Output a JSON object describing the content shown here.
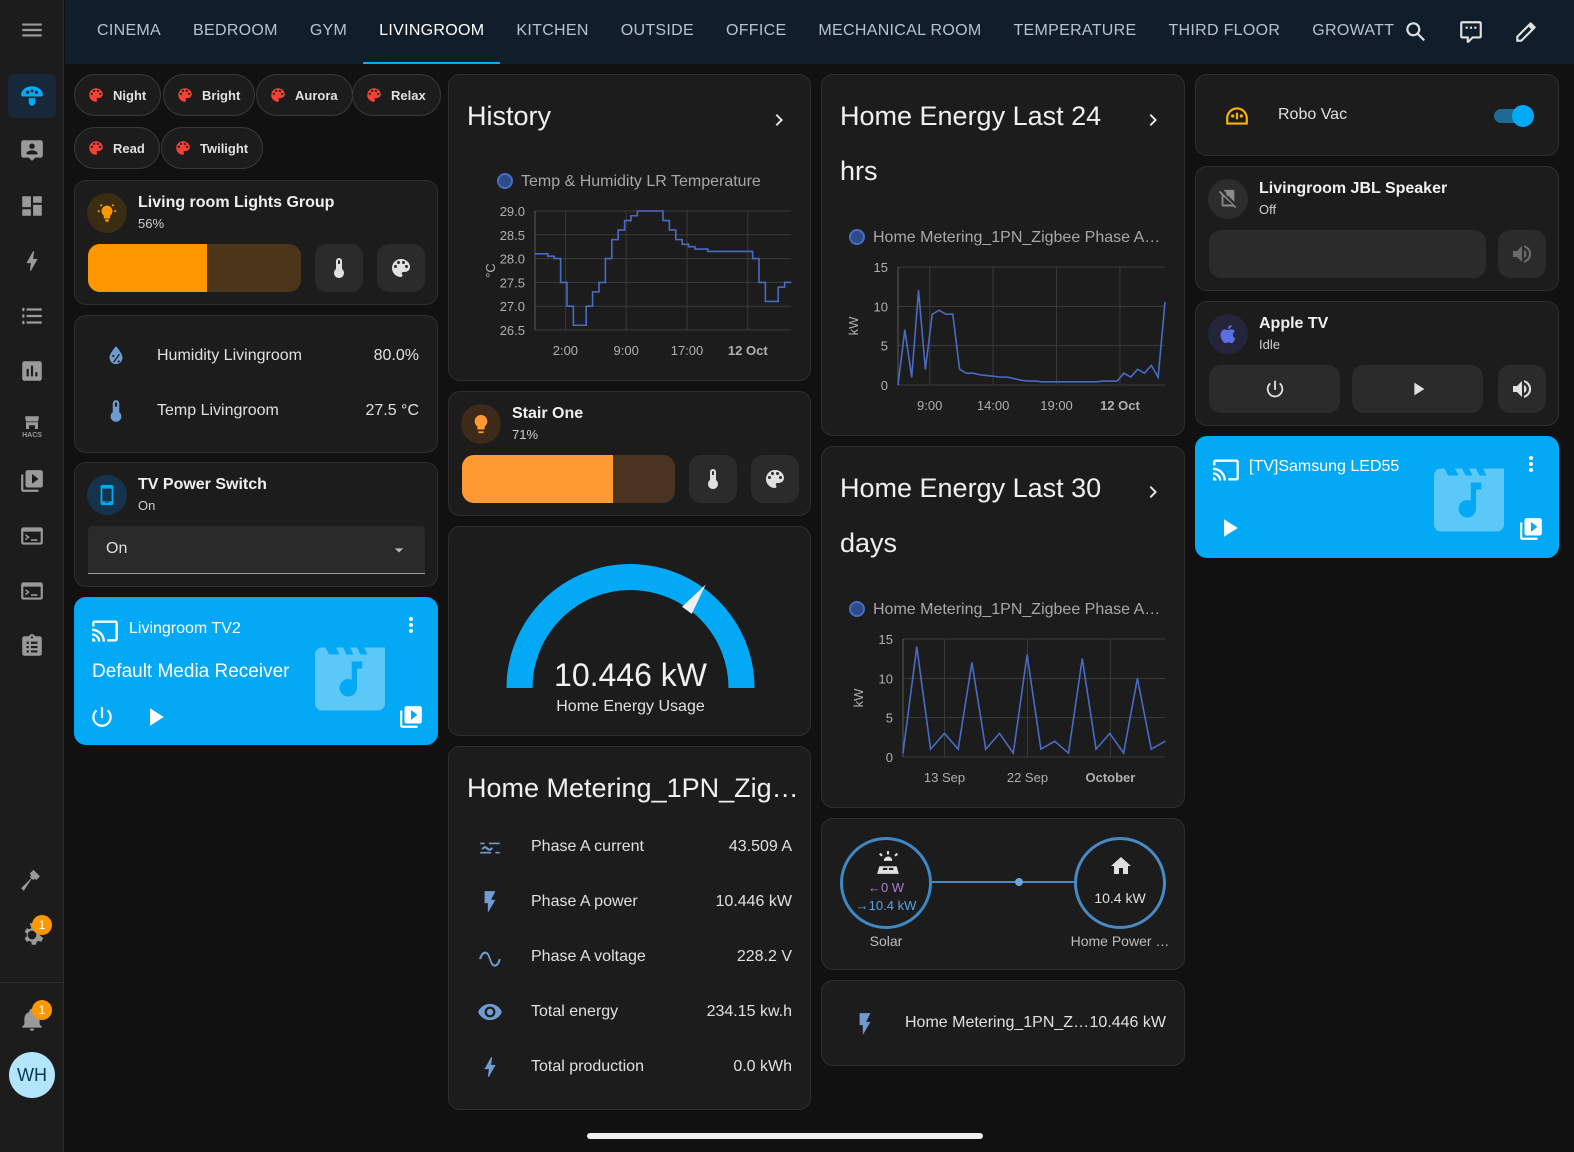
{
  "nav": {
    "tabs": [
      "CINEMA",
      "BEDROOM",
      "GYM",
      "LIVINGROOM",
      "KITCHEN",
      "OUTSIDE",
      "OFFICE",
      "MECHANICAL ROOM",
      "TEMPERATURE",
      "THIRD FLOOR",
      "GROWATT"
    ],
    "active_tab": "LIVINGROOM"
  },
  "sidebar": {
    "hacs_label": "HACS",
    "settings_badge": "1",
    "notifications_badge": "1",
    "avatar_initials": "WH"
  },
  "scenes": [
    "Night",
    "Bright",
    "Aurora",
    "Relax",
    "Read",
    "Twilight"
  ],
  "colors": {
    "accent": "#03a9f4",
    "orange": "#ff9800",
    "scene_red": "#f44336",
    "graph_line": "#4a6bc4"
  },
  "lights_group": {
    "name": "Living room Lights Group",
    "state": "56%",
    "brightness": 56
  },
  "sensors": [
    {
      "label": "Humidity Livingroom",
      "value": "80.0%",
      "icon": "water-percent-icon"
    },
    {
      "label": "Temp Livingroom",
      "value": "27.5 °C",
      "icon": "thermometer-icon"
    }
  ],
  "tv_power": {
    "name": "TV Power Switch",
    "state": "On",
    "select_value": "On"
  },
  "media_tv2": {
    "name": "Livingroom TV2",
    "app": "Default Media Receiver"
  },
  "history": {
    "title": "History",
    "chart_data": {
      "type": "line",
      "title": "History",
      "legend": "Temp & Humidity LR Temperature",
      "ylabel": "°C",
      "ylim": [
        26.5,
        29.0
      ],
      "yticks": [
        "29.0",
        "28.5",
        "28.0",
        "27.5",
        "27.0",
        "26.5"
      ],
      "xticks": [
        "2:00",
        "9:00",
        "17:00",
        "12 Oct"
      ],
      "x": [
        0,
        1,
        2,
        3,
        4,
        5,
        6,
        7,
        8,
        9,
        10,
        11,
        12,
        13,
        14,
        15,
        16,
        17,
        18,
        19,
        20,
        21,
        22,
        23,
        24,
        25,
        26,
        27,
        28,
        29,
        30,
        31,
        32,
        33,
        34,
        35,
        36,
        37,
        38,
        39,
        40
      ],
      "values": [
        28.1,
        28.1,
        28.05,
        28.0,
        27.5,
        27.0,
        26.6,
        26.6,
        27.0,
        27.3,
        27.5,
        28.0,
        28.4,
        28.6,
        28.8,
        28.9,
        29.0,
        29.0,
        29.0,
        29.0,
        28.8,
        28.6,
        28.4,
        28.3,
        28.25,
        28.2,
        28.2,
        28.15,
        28.15,
        28.15,
        28.15,
        28.15,
        28.15,
        28.15,
        28.0,
        27.5,
        27.1,
        27.1,
        27.4,
        27.5,
        27.5
      ]
    }
  },
  "stair_one": {
    "name": "Stair One",
    "state": "71%",
    "brightness": 71
  },
  "gauge": {
    "value": "10.446 kW",
    "name": "Home Energy Usage",
    "fraction": 0.7
  },
  "metering": {
    "title": "Home Metering_1PN_Zig…",
    "rows": [
      {
        "label": "Phase A current",
        "value": "43.509 A",
        "icon": "current-ac-icon"
      },
      {
        "label": "Phase A power",
        "value": "10.446 kW",
        "icon": "flash-icon"
      },
      {
        "label": "Phase A voltage",
        "value": "228.2 V",
        "icon": "sine-wave-icon"
      },
      {
        "label": "Total energy",
        "value": "234.15 kw.h",
        "icon": "eye-icon"
      },
      {
        "label": "Total production",
        "value": "0.0 kWh",
        "icon": "lightning-icon"
      }
    ]
  },
  "energy24": {
    "title_line1": "Home Energy Last 24",
    "title_line2": "hrs",
    "chart_data": {
      "type": "line",
      "legend": "Home Metering_1PN_Zigbee Phase A…",
      "ylabel": "kW",
      "ylim": [
        0,
        15
      ],
      "yticks": [
        "15",
        "10",
        "5",
        "0"
      ],
      "xticks": [
        "9:00",
        "14:00",
        "19:00",
        "12 Oct"
      ],
      "x": [
        0,
        1,
        2,
        3,
        4,
        5,
        6,
        7,
        8,
        9,
        10,
        11,
        12,
        13,
        14,
        15,
        16,
        17,
        18,
        19,
        20,
        21,
        22,
        23,
        24,
        25,
        26,
        27,
        28,
        29,
        30,
        31,
        32,
        33,
        34,
        35,
        36,
        37,
        38,
        39
      ],
      "values": [
        0,
        7,
        1,
        12,
        2,
        9,
        9.5,
        9,
        9,
        2,
        1.5,
        1.5,
        1.3,
        1.2,
        1.1,
        1.0,
        1.0,
        0.8,
        0.6,
        0.5,
        0.5,
        0.4,
        0.4,
        0.4,
        0.4,
        0.4,
        0.4,
        0.4,
        0.4,
        0.4,
        0.5,
        0.5,
        0.5,
        1.5,
        1.0,
        2.0,
        1.5,
        2.5,
        1.0,
        10.5
      ]
    }
  },
  "energy30": {
    "title_line1": "Home Energy Last 30",
    "title_line2": "days",
    "chart_data": {
      "type": "line",
      "legend": "Home Metering_1PN_Zigbee Phase A…",
      "ylabel": "kW",
      "ylim": [
        0,
        15
      ],
      "yticks": [
        "15",
        "10",
        "5",
        "0"
      ],
      "xticks": [
        "13 Sep",
        "22 Sep",
        "October"
      ],
      "x": [
        0,
        1,
        2,
        3,
        4,
        5,
        6,
        7,
        8,
        9,
        10,
        11,
        12,
        13,
        14,
        15,
        16,
        17,
        18,
        19
      ],
      "values": [
        0.5,
        14,
        1,
        3,
        1,
        12,
        1,
        3,
        0.5,
        13,
        1,
        2,
        0.5,
        12.5,
        1,
        3,
        0.5,
        10,
        1,
        2
      ]
    }
  },
  "energy_flow": {
    "solar_in": "←0 W",
    "solar_out": "→10.4 kW",
    "solar_label": "Solar",
    "home_value": "10.4 kW",
    "home_label": "Home Power …"
  },
  "metering_tile": {
    "name": "Home Metering_1PN_Z…",
    "value": "10.446 kW"
  },
  "robovac": {
    "name": "Robo Vac",
    "on": true
  },
  "jbl": {
    "name": "Livingroom JBL Speaker",
    "state": "Off"
  },
  "apple_tv": {
    "name": "Apple TV",
    "state": "Idle"
  },
  "samsung": {
    "name": "[TV]Samsung LED55"
  }
}
